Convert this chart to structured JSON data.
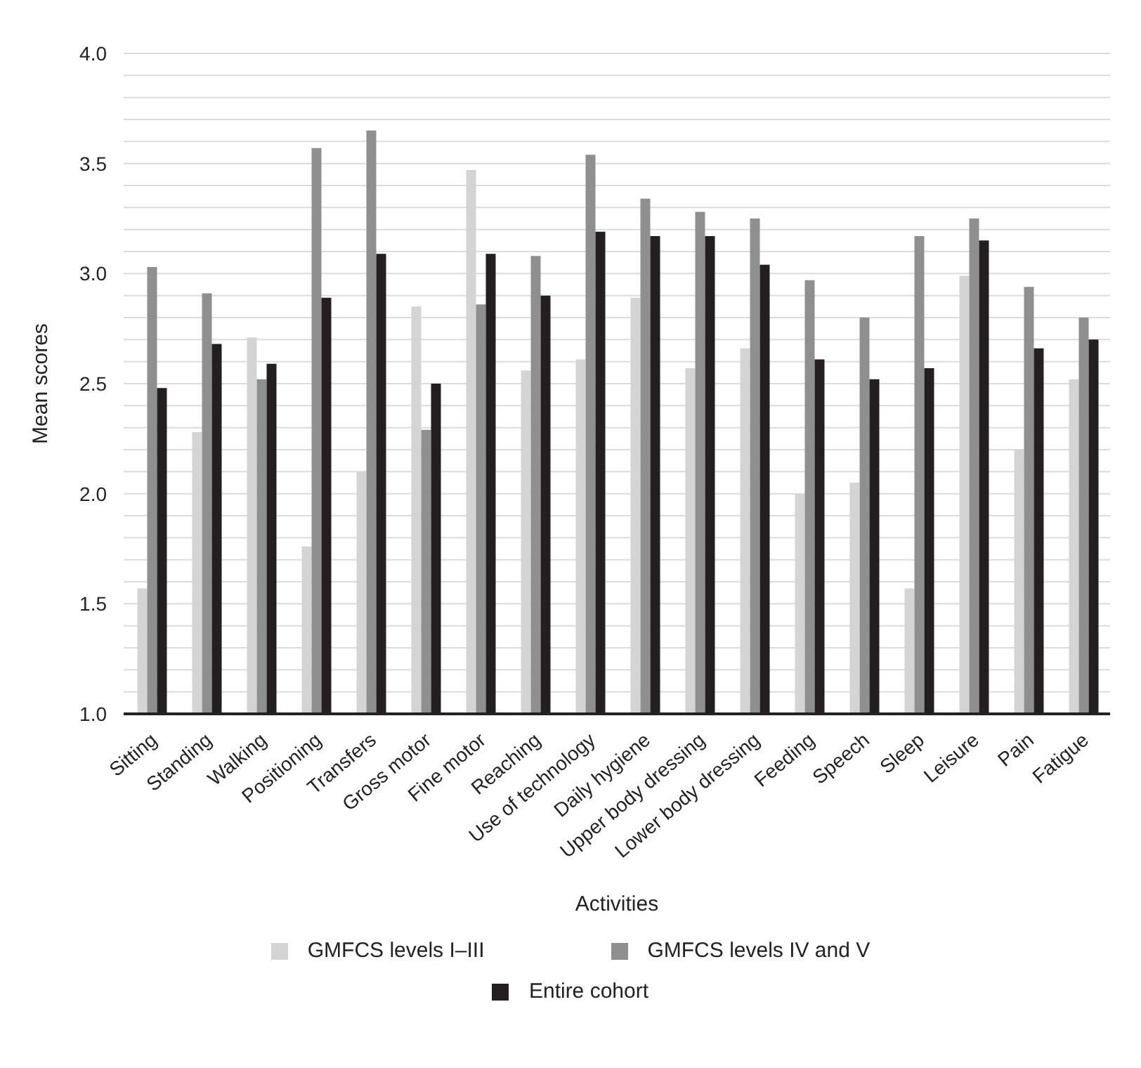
{
  "chart_data": {
    "type": "bar",
    "xlabel": "Activities",
    "ylabel": "Mean scores",
    "categories": [
      "Sitting",
      "Standing",
      "Walking",
      "Positioning",
      "Transfers",
      "Gross motor",
      "Fine motor",
      "Reaching",
      "Use of technology",
      "Daily hygiene",
      "Upper body dressing",
      "Lower body dressing",
      "Feeding",
      "Speech",
      "Sleep",
      "Leisure",
      "Pain",
      "Fatigue"
    ],
    "series": [
      {
        "name": "GMFCS levels I–III",
        "color": "#d4d4d4",
        "values": [
          1.57,
          2.28,
          2.71,
          1.76,
          2.1,
          2.85,
          3.47,
          2.56,
          2.61,
          2.89,
          2.57,
          2.66,
          2.0,
          2.05,
          1.57,
          2.99,
          2.2,
          2.52
        ]
      },
      {
        "name": "GMFCS levels IV and V",
        "color": "#8f8f8f",
        "values": [
          3.03,
          2.91,
          2.52,
          3.57,
          3.65,
          2.29,
          2.86,
          3.08,
          3.54,
          3.34,
          3.28,
          3.25,
          2.97,
          2.8,
          3.17,
          3.25,
          2.94,
          2.8
        ]
      },
      {
        "name": "Entire cohort",
        "color": "#231f20",
        "values": [
          2.48,
          2.68,
          2.59,
          2.89,
          3.09,
          2.5,
          3.09,
          2.9,
          3.19,
          3.17,
          3.17,
          3.04,
          2.61,
          2.52,
          2.57,
          3.15,
          2.66,
          2.7
        ]
      }
    ],
    "ylim": [
      1.0,
      4.0
    ],
    "yticks": [
      {
        "value": 1.0,
        "label": "1.0"
      },
      {
        "value": 1.1,
        "label": null
      },
      {
        "value": 1.2,
        "label": null
      },
      {
        "value": 1.3,
        "label": null
      },
      {
        "value": 1.4,
        "label": null
      },
      {
        "value": 1.5,
        "label": "1.5"
      },
      {
        "value": 1.6,
        "label": null
      },
      {
        "value": 1.7,
        "label": null
      },
      {
        "value": 1.8,
        "label": null
      },
      {
        "value": 1.9,
        "label": null
      },
      {
        "value": 2.0,
        "label": "2.0"
      },
      {
        "value": 2.1,
        "label": null
      },
      {
        "value": 2.2,
        "label": null
      },
      {
        "value": 2.3,
        "label": null
      },
      {
        "value": 2.4,
        "label": null
      },
      {
        "value": 2.5,
        "label": "2.5"
      },
      {
        "value": 2.6,
        "label": null
      },
      {
        "value": 2.7,
        "label": null
      },
      {
        "value": 2.8,
        "label": null
      },
      {
        "value": 2.9,
        "label": null
      },
      {
        "value": 3.0,
        "label": "3.0"
      },
      {
        "value": 3.1,
        "label": null
      },
      {
        "value": 3.2,
        "label": null
      },
      {
        "value": 3.3,
        "label": null
      },
      {
        "value": 3.4,
        "label": null
      },
      {
        "value": 3.5,
        "label": "3.5"
      },
      {
        "value": 3.6,
        "label": null
      },
      {
        "value": 3.7,
        "label": null
      },
      {
        "value": 3.8,
        "label": null
      },
      {
        "value": 3.9,
        "label": null
      },
      {
        "value": 4.0,
        "label": "4.0"
      }
    ],
    "grid": "y",
    "legend": "bottom"
  }
}
